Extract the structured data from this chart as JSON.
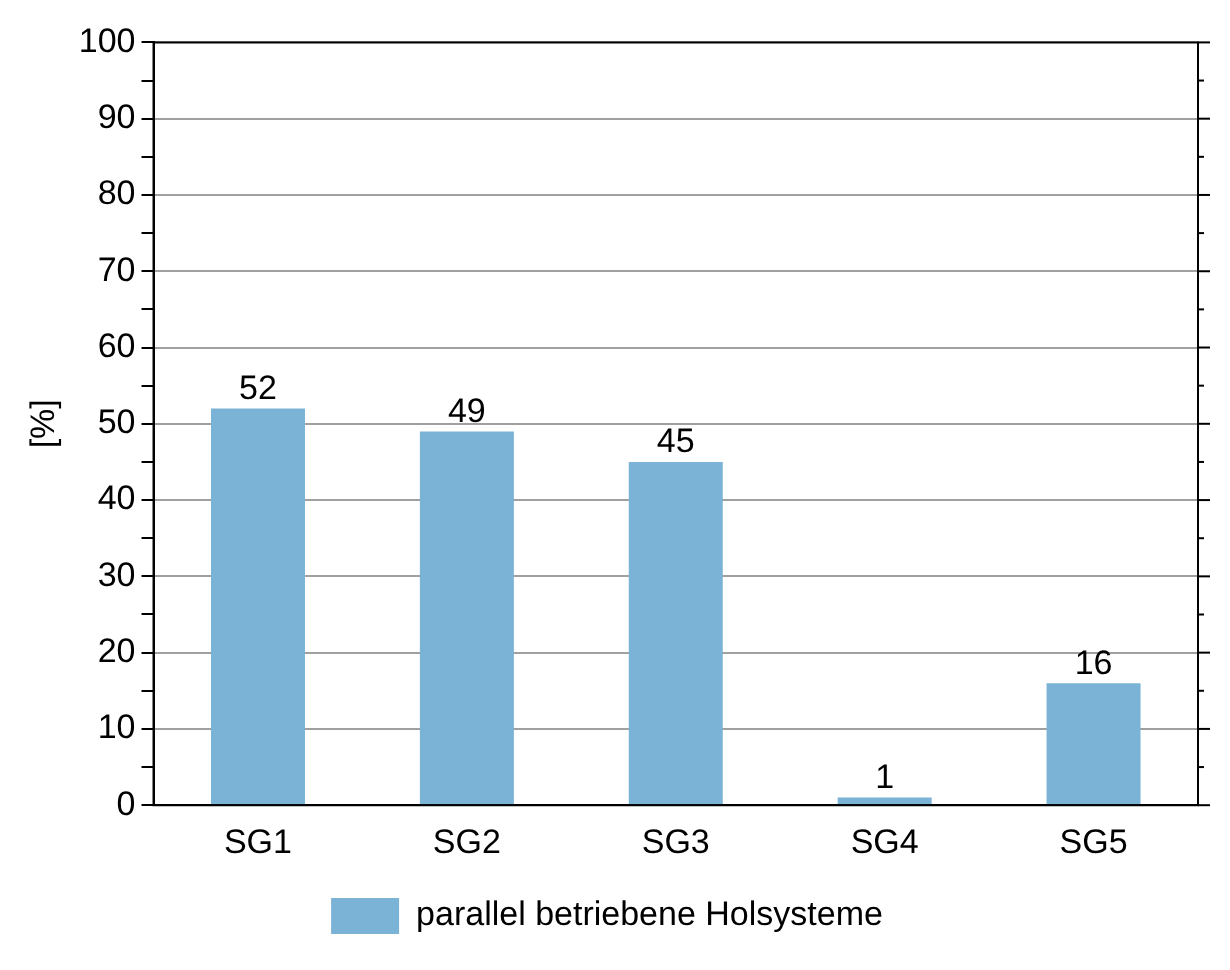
{
  "chart_data": {
    "type": "bar",
    "ylabel": "[%]",
    "categories": [
      "SG1",
      "SG2",
      "SG3",
      "SG4",
      "SG5"
    ],
    "series": [
      {
        "name": "parallel betriebene Holsysteme",
        "color": "#7ab3d5",
        "values": [
          52,
          49,
          45,
          1,
          16
        ]
      }
    ],
    "ylim": [
      0,
      100
    ],
    "yticks": [
      0,
      {
        "value": 5,
        "label": null
      },
      10,
      {
        "value": 15,
        "label": null
      },
      20,
      {
        "value": 25,
        "label": null
      },
      30,
      {
        "value": 35,
        "label": null
      },
      40,
      {
        "value": 45,
        "label": null
      },
      50,
      {
        "value": 55,
        "label": null
      },
      60,
      {
        "value": 65,
        "label": null
      },
      70,
      {
        "value": 75,
        "label": null
      },
      80,
      {
        "value": 85,
        "label": null
      },
      90,
      {
        "value": 95,
        "label": null
      },
      100
    ],
    "grid": "y",
    "legend": "bottom",
    "data_labels": true
  }
}
